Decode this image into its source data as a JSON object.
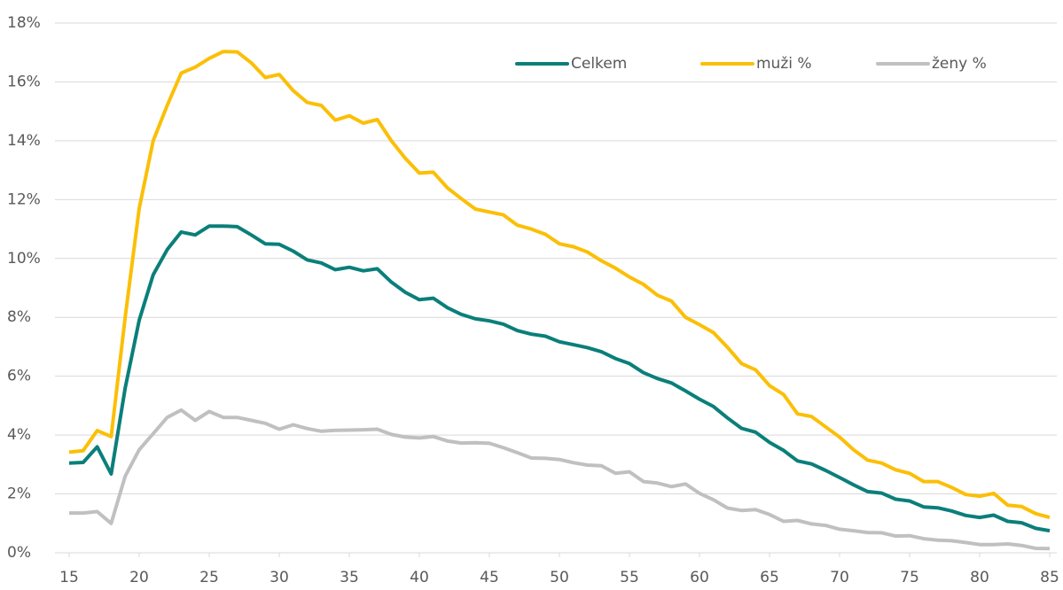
{
  "chart_data": {
    "type": "line",
    "x": [
      15,
      16,
      17,
      18,
      19,
      20,
      21,
      22,
      23,
      24,
      25,
      26,
      27,
      28,
      29,
      30,
      31,
      32,
      33,
      34,
      35,
      36,
      37,
      38,
      39,
      40,
      41,
      42,
      43,
      44,
      45,
      46,
      47,
      48,
      49,
      50,
      51,
      52,
      53,
      54,
      55,
      56,
      57,
      58,
      59,
      60,
      61,
      62,
      63,
      64,
      65,
      66,
      67,
      68,
      69,
      70,
      71,
      72,
      73,
      74,
      75,
      76,
      77,
      78,
      79,
      80,
      81,
      82,
      83,
      84,
      85
    ],
    "series": [
      {
        "name": "Celkem",
        "color": "#0a7f7a",
        "values": [
          3.05,
          3.07,
          3.6,
          2.68,
          5.6,
          7.9,
          9.45,
          10.3,
          10.9,
          10.8,
          11.1,
          11.1,
          11.08,
          10.8,
          10.5,
          10.48,
          10.25,
          9.95,
          9.85,
          9.62,
          9.7,
          9.58,
          9.65,
          9.2,
          8.85,
          8.6,
          8.65,
          8.33,
          8.1,
          7.95,
          7.88,
          7.77,
          7.55,
          7.43,
          7.36,
          7.17,
          7.07,
          6.97,
          6.83,
          6.6,
          6.43,
          6.12,
          5.92,
          5.77,
          5.5,
          5.22,
          4.97,
          4.58,
          4.23,
          4.1,
          3.75,
          3.48,
          3.12,
          3.02,
          2.8,
          2.56,
          2.31,
          2.08,
          2.03,
          1.82,
          1.76,
          1.56,
          1.53,
          1.42,
          1.27,
          1.2,
          1.28,
          1.07,
          1.02,
          0.83,
          0.75
        ]
      },
      {
        "name": "muži %",
        "color": "#fbbf07",
        "values": [
          3.42,
          3.47,
          4.15,
          3.95,
          8.0,
          11.7,
          14.0,
          15.2,
          16.3,
          16.5,
          16.8,
          17.03,
          17.02,
          16.65,
          16.15,
          16.25,
          15.7,
          15.3,
          15.2,
          14.7,
          14.85,
          14.6,
          14.72,
          14.0,
          13.4,
          12.9,
          12.93,
          12.4,
          12.03,
          11.68,
          11.58,
          11.48,
          11.13,
          11.0,
          10.82,
          10.5,
          10.4,
          10.22,
          9.92,
          9.67,
          9.37,
          9.12,
          8.75,
          8.55,
          8.0,
          7.75,
          7.48,
          6.98,
          6.43,
          6.22,
          5.68,
          5.38,
          4.72,
          4.63,
          4.28,
          3.93,
          3.5,
          3.15,
          3.05,
          2.82,
          2.7,
          2.42,
          2.42,
          2.22,
          1.98,
          1.92,
          2.02,
          1.62,
          1.57,
          1.33,
          1.2
        ]
      },
      {
        "name": "ženy %",
        "color": "#c0c0c0",
        "values": [
          1.35,
          1.35,
          1.4,
          1.0,
          2.6,
          3.5,
          4.05,
          4.6,
          4.85,
          4.5,
          4.8,
          4.6,
          4.6,
          4.5,
          4.4,
          4.2,
          4.35,
          4.22,
          4.13,
          4.16,
          4.17,
          4.18,
          4.2,
          4.02,
          3.93,
          3.9,
          3.95,
          3.8,
          3.73,
          3.74,
          3.72,
          3.57,
          3.4,
          3.22,
          3.21,
          3.17,
          3.06,
          2.98,
          2.96,
          2.7,
          2.75,
          2.42,
          2.37,
          2.25,
          2.34,
          2.02,
          1.8,
          1.52,
          1.44,
          1.47,
          1.3,
          1.07,
          1.1,
          0.98,
          0.93,
          0.8,
          0.75,
          0.69,
          0.68,
          0.57,
          0.58,
          0.48,
          0.43,
          0.41,
          0.35,
          0.28,
          0.28,
          0.3,
          0.25,
          0.15,
          0.14
        ]
      }
    ],
    "xlim": [
      15,
      85
    ],
    "xticks": [
      15,
      20,
      25,
      30,
      35,
      40,
      45,
      50,
      55,
      60,
      65,
      70,
      75,
      80,
      85
    ],
    "ylim": [
      0,
      18
    ],
    "yticks": [
      {
        "value": 0,
        "label": "0%"
      },
      {
        "value": 2,
        "label": "2%"
      },
      {
        "value": 4,
        "label": "4%"
      },
      {
        "value": 6,
        "label": "6%"
      },
      {
        "value": 8,
        "label": "8%"
      },
      {
        "value": 10,
        "label": "10%"
      },
      {
        "value": 12,
        "label": "12%"
      },
      {
        "value": 14,
        "label": "14%"
      },
      {
        "value": 16,
        "label": "16%"
      },
      {
        "value": 18,
        "label": "18%"
      }
    ],
    "grid": true,
    "legend": "top"
  }
}
